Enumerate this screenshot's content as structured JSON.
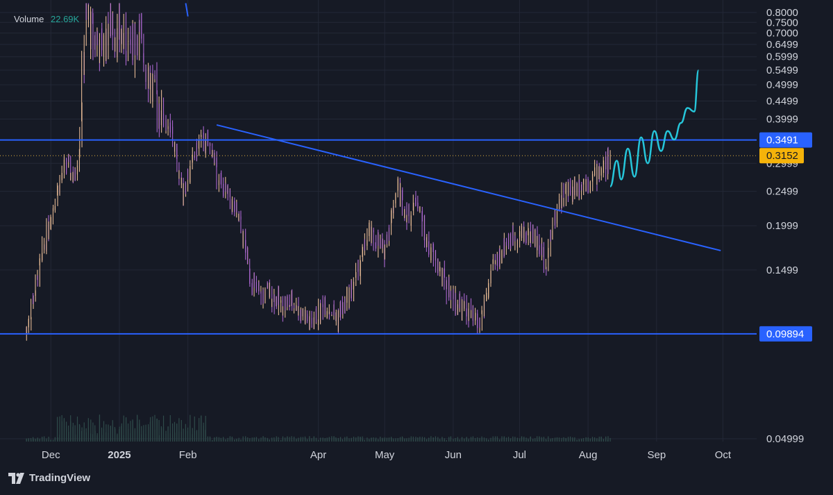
{
  "legend": {
    "volume_label": "Volume",
    "volume_value": "22.69K"
  },
  "brand": {
    "name": "TradingView"
  },
  "colors": {
    "background": "#161a25",
    "grid": "#232836",
    "text": "#d1d4dc",
    "trendline": "#2962ff",
    "projection": "#26c6da",
    "last_price_bg": "#f5b30a",
    "price_line": "#e0b040",
    "level_label_bg": "#2962ff",
    "candle_light": "#f2c39b",
    "candle_dark": "#b26ad8",
    "volume": "#2f4b4a"
  },
  "chart_data": {
    "type": "line",
    "title": "",
    "xlabel": "",
    "ylabel": "",
    "y_scale": "log",
    "ylim": [
      0.04999,
      0.8
    ],
    "xlim": [
      "2024-11-08",
      "2025-10-15"
    ],
    "x_ticks": [
      {
        "date": "2024-12-01",
        "label": "Dec"
      },
      {
        "date": "2025-01-01",
        "label": "2025"
      },
      {
        "date": "2025-02-01",
        "label": "Feb"
      },
      {
        "date": "2025-04-01",
        "label": "Apr"
      },
      {
        "date": "2025-05-01",
        "label": "May"
      },
      {
        "date": "2025-06-01",
        "label": "Jun"
      },
      {
        "date": "2025-07-01",
        "label": "Jul"
      },
      {
        "date": "2025-08-01",
        "label": "Aug"
      },
      {
        "date": "2025-09-01",
        "label": "Sep"
      },
      {
        "date": "2025-10-01",
        "label": "Oct"
      }
    ],
    "y_ticks": [
      "0.8000",
      "0.7500",
      "0.7000",
      "0.6499",
      "0.5999",
      "0.5499",
      "0.4999",
      "0.4499",
      "0.3999",
      "0.2999",
      "0.2499",
      "0.1999",
      "0.1499",
      "0.04999"
    ],
    "grid": true,
    "series": [
      {
        "values_date": [
          "2024-11-20",
          "2024-11-25",
          "2024-11-30",
          "2024-12-04",
          "2024-12-08",
          "2024-12-12",
          "2024-12-14",
          "2024-12-17",
          "2024-12-20",
          "2024-12-24",
          "2024-12-28",
          "2025-01-01",
          "2025-01-05",
          "2025-01-10",
          "2025-01-15",
          "2025-01-20",
          "2025-01-25",
          "2025-01-30",
          "2025-02-03",
          "2025-02-07",
          "2025-02-12",
          "2025-02-16",
          "2025-02-20",
          "2025-02-25",
          "2025-03-02",
          "2025-03-06",
          "2025-03-10",
          "2025-03-15",
          "2025-03-22",
          "2025-03-29",
          "2025-04-04",
          "2025-04-10",
          "2025-04-17",
          "2025-04-24",
          "2025-05-01",
          "2025-05-07",
          "2025-05-12",
          "2025-05-16",
          "2025-05-20",
          "2025-05-26",
          "2025-06-01",
          "2025-06-07",
          "2025-06-13",
          "2025-06-19",
          "2025-06-25",
          "2025-07-01",
          "2025-07-07",
          "2025-07-13",
          "2025-07-19",
          "2025-07-23",
          "2025-07-27",
          "2025-08-01",
          "2025-08-05",
          "2025-08-11"
        ],
        "values": [
          0.1,
          0.14,
          0.2,
          0.25,
          0.3,
          0.27,
          0.33,
          0.8,
          0.7,
          0.62,
          0.75,
          0.7,
          0.64,
          0.7,
          0.52,
          0.42,
          0.36,
          0.25,
          0.3,
          0.35,
          0.33,
          0.26,
          0.24,
          0.2,
          0.14,
          0.125,
          0.13,
          0.12,
          0.12,
          0.105,
          0.12,
          0.11,
          0.135,
          0.19,
          0.17,
          0.26,
          0.21,
          0.24,
          0.18,
          0.15,
          0.125,
          0.115,
          0.105,
          0.15,
          0.18,
          0.19,
          0.19,
          0.16,
          0.235,
          0.25,
          0.26,
          0.27,
          0.28,
          0.305
        ]
      },
      {
        "name": "",
        "kind": "projection",
        "x": [
          "2025-08-11",
          "2025-08-14",
          "2025-08-16",
          "2025-08-19",
          "2025-08-22",
          "2025-08-25",
          "2025-08-28",
          "2025-08-31",
          "2025-09-03",
          "2025-09-06",
          "2025-09-09",
          "2025-09-12",
          "2025-09-15",
          "2025-09-18",
          "2025-09-20"
        ],
        "y": [
          0.258,
          0.305,
          0.27,
          0.33,
          0.275,
          0.355,
          0.3,
          0.37,
          0.325,
          0.37,
          0.35,
          0.39,
          0.43,
          0.42,
          0.549
        ]
      }
    ],
    "levels": [
      {
        "value": 0.3491,
        "label": "0.3491",
        "style": "solid"
      },
      {
        "value": 0.09894,
        "label": "0.09894",
        "style": "solid"
      },
      {
        "value": 0.3152,
        "label": "0.3152",
        "style": "dotted-last-price"
      }
    ],
    "trendlines": [
      {
        "x": [
          "2025-02-14",
          "2025-09-30"
        ],
        "y": [
          0.385,
          0.17
        ]
      },
      {
        "x": [
          "2025-01-31",
          "2025-02-01"
        ],
        "y": [
          0.85,
          0.78
        ]
      }
    ]
  }
}
